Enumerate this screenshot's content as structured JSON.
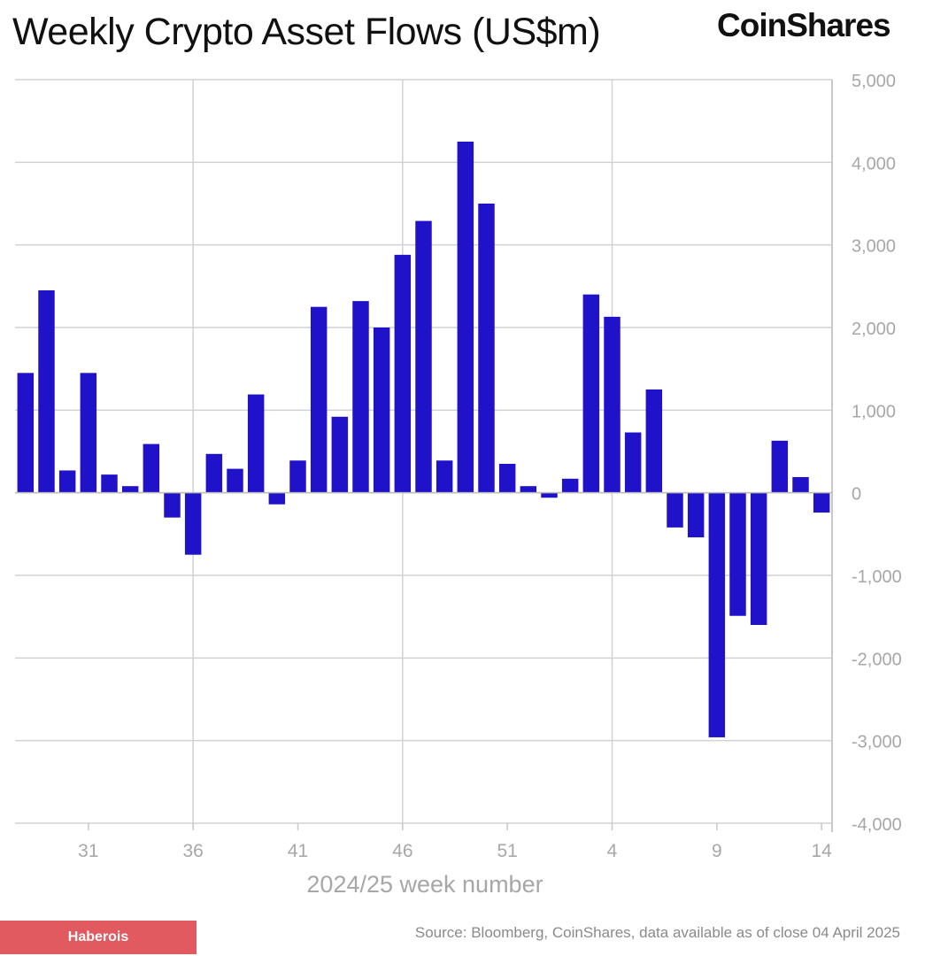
{
  "title": "Weekly Crypto Asset Flows (US$m)",
  "brand": "CoinShares",
  "badge": "Haberois",
  "source": "Source: Bloomberg, CoinShares, data available as of close 04 April 2025",
  "chart_data": {
    "type": "bar",
    "xlabel": "2024/25 week number",
    "ylabel": "",
    "ylim": [
      -4000,
      5000
    ],
    "y_ticks": [
      5000,
      4000,
      3000,
      2000,
      1000,
      0,
      -1000,
      -2000,
      -3000,
      -4000
    ],
    "y_tick_labels": [
      "5,000",
      "4,000",
      "3,000",
      "2,000",
      "1,000",
      "0",
      "-1,000",
      "-2,000",
      "-3,000",
      "-4,000"
    ],
    "x_tick_labels": [
      "31",
      "36",
      "41",
      "46",
      "51",
      "4",
      "9",
      "14"
    ],
    "x_tick_category_index": [
      3,
      8,
      13,
      18,
      23,
      28,
      33,
      38
    ],
    "vertical_grid_category_index": [
      8,
      18,
      28
    ],
    "bar_color": "#1f12c9",
    "categories": [
      "28",
      "29",
      "30",
      "31",
      "32",
      "33",
      "34",
      "35",
      "36",
      "37",
      "38",
      "39",
      "40",
      "41",
      "42",
      "43",
      "44",
      "45",
      "46",
      "47",
      "48",
      "49",
      "50",
      "51",
      "52",
      "1",
      "2",
      "3",
      "4",
      "5",
      "6",
      "7",
      "8",
      "9",
      "10",
      "11",
      "12",
      "13",
      "14"
    ],
    "values": [
      1450,
      2450,
      270,
      1450,
      220,
      80,
      590,
      -300,
      -750,
      470,
      290,
      1190,
      -140,
      390,
      2250,
      920,
      2320,
      2000,
      2880,
      3290,
      390,
      4250,
      3500,
      350,
      80,
      -60,
      170,
      2400,
      2130,
      730,
      1250,
      -420,
      -540,
      -2960,
      -1490,
      -1600,
      630,
      190,
      -240
    ]
  }
}
